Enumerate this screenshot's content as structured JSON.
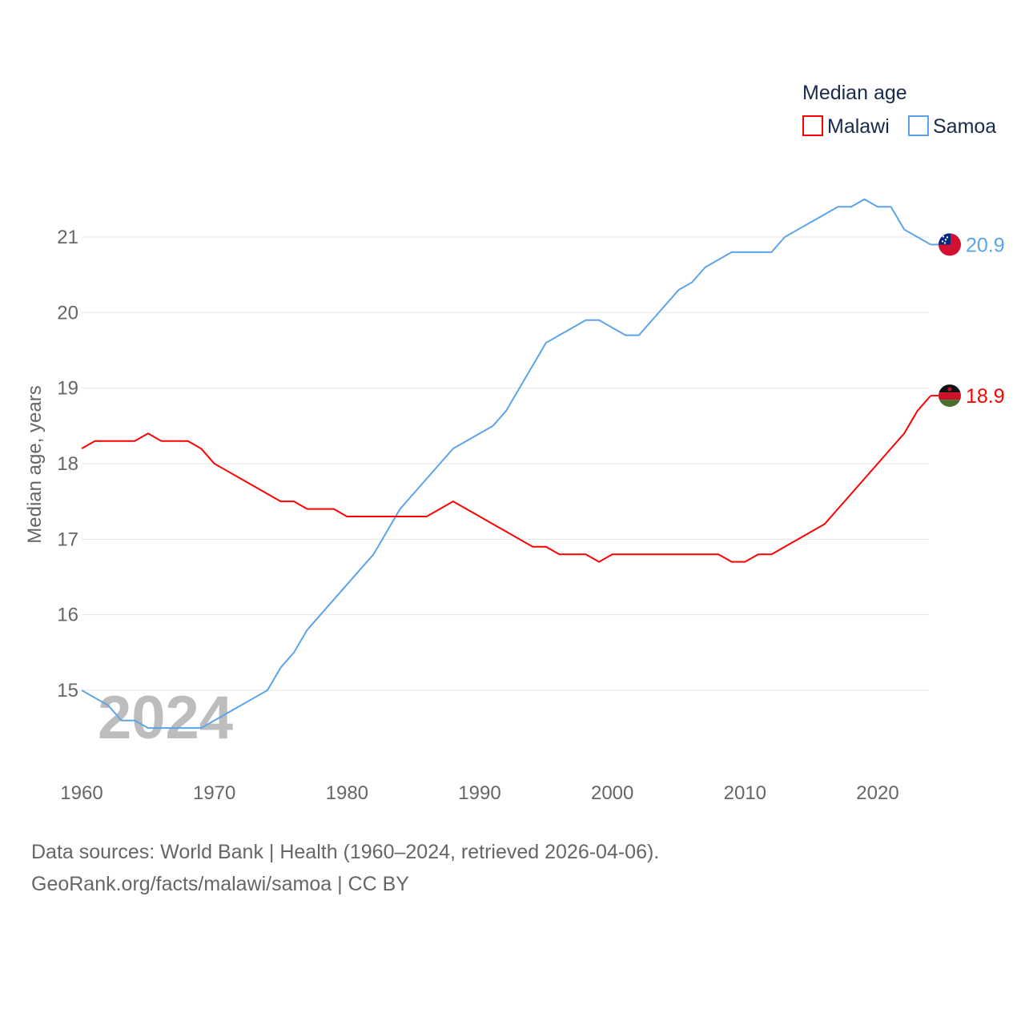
{
  "chart_data": {
    "type": "line",
    "title": "Median age",
    "ylabel": "Median age, years",
    "xlabel": "",
    "xlim": [
      1960,
      2024
    ],
    "ylim": [
      14.2,
      21.8
    ],
    "xticks": [
      1960,
      1970,
      1980,
      1990,
      2000,
      2010,
      2020
    ],
    "yticks": [
      15,
      16,
      17,
      18,
      19,
      20,
      21
    ],
    "grid": true,
    "legend_position": "top-right",
    "year_watermark": "2024",
    "x": [
      1960,
      1961,
      1962,
      1963,
      1964,
      1965,
      1966,
      1967,
      1968,
      1969,
      1970,
      1971,
      1972,
      1973,
      1974,
      1975,
      1976,
      1977,
      1978,
      1979,
      1980,
      1981,
      1982,
      1983,
      1984,
      1985,
      1986,
      1987,
      1988,
      1989,
      1990,
      1991,
      1992,
      1993,
      1994,
      1995,
      1996,
      1997,
      1998,
      1999,
      2000,
      2001,
      2002,
      2003,
      2004,
      2005,
      2006,
      2007,
      2008,
      2009,
      2010,
      2011,
      2012,
      2013,
      2014,
      2015,
      2016,
      2017,
      2018,
      2019,
      2020,
      2021,
      2022,
      2023,
      2024
    ],
    "series": [
      {
        "name": "Malawi",
        "color": "#ff0000",
        "end_label": "18.9",
        "flag": "malawi-flag",
        "values": [
          18.2,
          18.3,
          18.3,
          18.3,
          18.3,
          18.4,
          18.3,
          18.3,
          18.3,
          18.2,
          18.0,
          17.9,
          17.8,
          17.7,
          17.6,
          17.5,
          17.5,
          17.4,
          17.4,
          17.4,
          17.3,
          17.3,
          17.3,
          17.3,
          17.3,
          17.3,
          17.3,
          17.4,
          17.5,
          17.4,
          17.3,
          17.2,
          17.1,
          17.0,
          16.9,
          16.9,
          16.8,
          16.8,
          16.8,
          16.7,
          16.8,
          16.8,
          16.8,
          16.8,
          16.8,
          16.8,
          16.8,
          16.8,
          16.8,
          16.7,
          16.7,
          16.8,
          16.8,
          16.9,
          17.0,
          17.1,
          17.2,
          17.4,
          17.6,
          17.8,
          18.0,
          18.2,
          18.4,
          18.7,
          18.9
        ]
      },
      {
        "name": "Samoa",
        "color": "#5ba4ec",
        "end_label": "20.9",
        "flag": "samoa-flag",
        "values": [
          15.0,
          14.9,
          14.8,
          14.6,
          14.6,
          14.5,
          14.5,
          14.5,
          14.5,
          14.5,
          14.6,
          14.7,
          14.8,
          14.9,
          15.0,
          15.3,
          15.5,
          15.8,
          16.0,
          16.2,
          16.4,
          16.6,
          16.8,
          17.1,
          17.4,
          17.6,
          17.8,
          18.0,
          18.2,
          18.3,
          18.4,
          18.5,
          18.7,
          19.0,
          19.3,
          19.6,
          19.7,
          19.8,
          19.9,
          19.9,
          19.8,
          19.7,
          19.7,
          19.9,
          20.1,
          20.3,
          20.4,
          20.6,
          20.7,
          20.8,
          20.8,
          20.8,
          20.8,
          21.0,
          21.1,
          21.2,
          21.3,
          21.4,
          21.4,
          21.5,
          21.4,
          21.4,
          21.1,
          21.0,
          20.9
        ]
      }
    ]
  },
  "footer": {
    "sources": "Data sources: World Bank | Health (1960–2024, retrieved 2026-04-06).",
    "credit": "GeoRank.org/facts/malawi/samoa | CC BY"
  }
}
